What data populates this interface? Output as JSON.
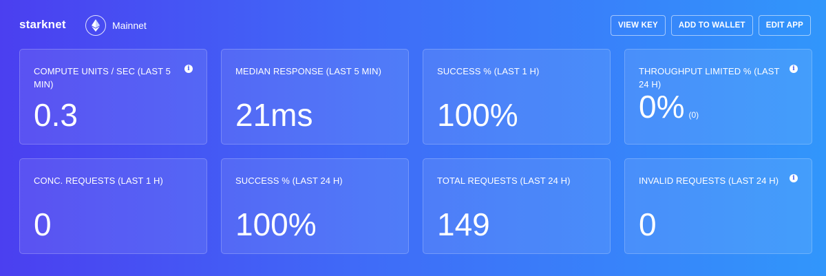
{
  "header": {
    "app_name": "starknet",
    "network_label": "Mainnet",
    "network_icon": "ethereum-icon",
    "actions": [
      {
        "label": "VIEW KEY"
      },
      {
        "label": "ADD TO WALLET"
      },
      {
        "label": "EDIT APP"
      }
    ]
  },
  "metrics": [
    {
      "label": "COMPUTE UNITS / SEC (LAST 5 MIN)",
      "value": "0.3",
      "info": true
    },
    {
      "label": "MEDIAN RESPONSE (LAST 5 MIN)",
      "value": "21ms",
      "info": false
    },
    {
      "label": "SUCCESS % (LAST 1 H)",
      "value": "100%",
      "info": false
    },
    {
      "label": "THROUGHPUT LIMITED % (LAST 24 H)",
      "value": "0%",
      "sub": "(0)",
      "info": true
    },
    {
      "label": "CONC. REQUESTS (LAST 1 H)",
      "value": "0",
      "info": false
    },
    {
      "label": "SUCCESS % (LAST 24 H)",
      "value": "100%",
      "info": false
    },
    {
      "label": "TOTAL REQUESTS (LAST 24 H)",
      "value": "149",
      "info": false
    },
    {
      "label": "INVALID REQUESTS (LAST 24 H)",
      "value": "0",
      "info": true
    }
  ],
  "colors": {
    "gradient_start": "#4b3ff0",
    "gradient_end": "#3196fb"
  }
}
